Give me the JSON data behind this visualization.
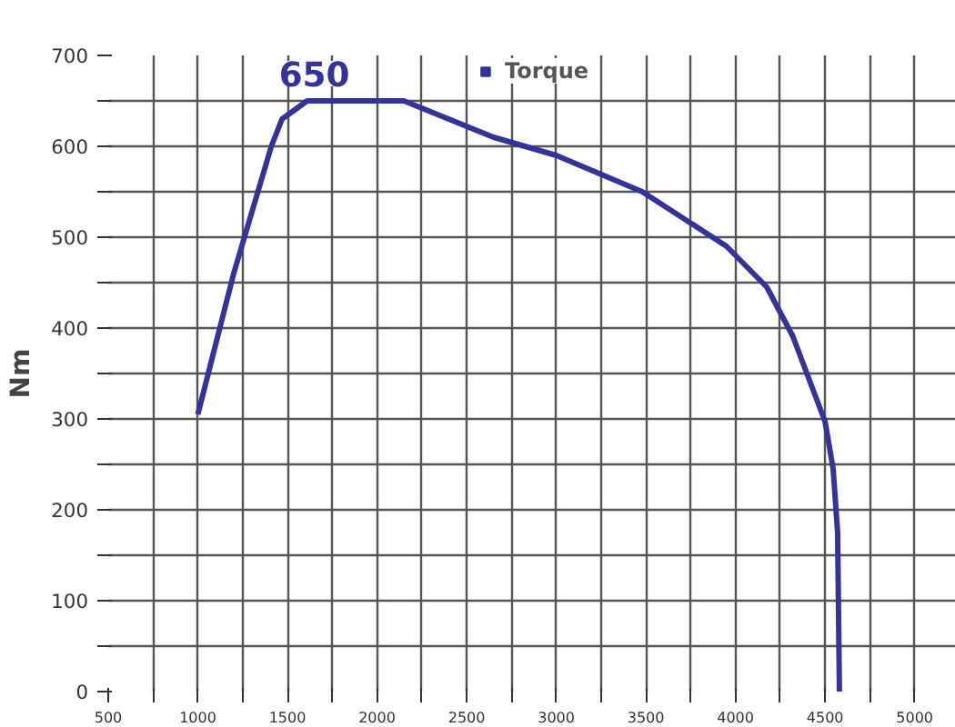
{
  "chart_data": {
    "type": "line",
    "ylabel": "Nm",
    "x": [
      1000,
      1200,
      1410,
      1470,
      1610,
      2150,
      2650,
      3000,
      3480,
      3950,
      4175,
      4320,
      4500,
      4545,
      4570,
      4580
    ],
    "series": [
      {
        "name": "Torque",
        "color": "#333399",
        "values": [
          305,
          460,
          600,
          630,
          650,
          650,
          610,
          590,
          550,
          490,
          445,
          391,
          297,
          245,
          175,
          0
        ]
      }
    ],
    "annotations": [
      {
        "text": "650",
        "x": 1650,
        "y": 650
      }
    ],
    "xlim": [
      500,
      5230
    ],
    "ylim": [
      0,
      700
    ],
    "xticks": [
      500,
      {
        "value": 750,
        "label": null
      },
      1000,
      {
        "value": 1250,
        "label": null
      },
      1500,
      {
        "value": 1750,
        "label": null
      },
      2000,
      {
        "value": 2250,
        "label": null
      },
      2500,
      {
        "value": 2750,
        "label": null
      },
      3000,
      {
        "value": 3250,
        "label": null
      },
      3500,
      {
        "value": 3750,
        "label": null
      },
      4000,
      {
        "value": 4250,
        "label": null
      },
      4500,
      {
        "value": 4750,
        "label": null
      },
      5000
    ],
    "yticks": [
      0,
      {
        "value": 50,
        "label": null
      },
      100,
      {
        "value": 150,
        "label": null
      },
      200,
      {
        "value": 250,
        "label": null
      },
      300,
      {
        "value": 350,
        "label": null
      },
      400,
      {
        "value": 450,
        "label": null
      },
      500,
      {
        "value": 550,
        "label": null
      },
      600,
      {
        "value": 650,
        "label": null
      },
      700
    ],
    "grid": true,
    "legend": "top",
    "marker": "none",
    "line_style": "solid"
  }
}
